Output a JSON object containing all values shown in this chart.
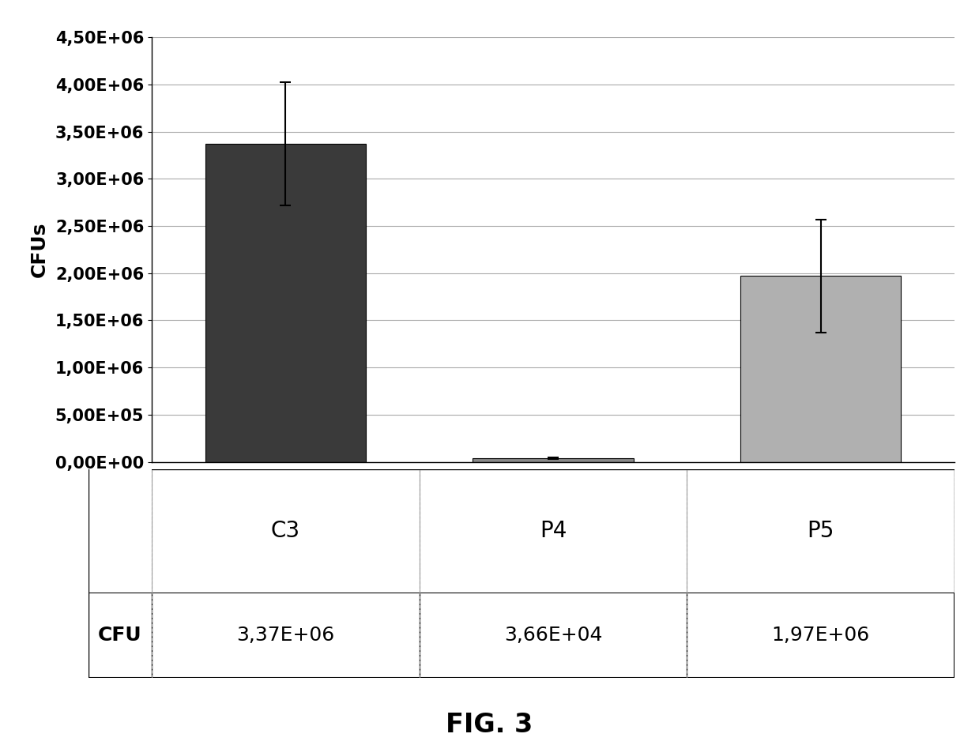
{
  "categories": [
    "C3",
    "P4",
    "P5"
  ],
  "values": [
    3370000,
    36600,
    1970000
  ],
  "errors": [
    650000,
    10000,
    600000
  ],
  "bar_colors": [
    "#3a3a3a",
    "#888888",
    "#b0b0b0"
  ],
  "bar_edge_colors": [
    "#000000",
    "#000000",
    "#000000"
  ],
  "ylabel": "CFUs",
  "ylim": [
    0,
    4500000
  ],
  "yticks": [
    0,
    500000,
    1000000,
    1500000,
    2000000,
    2500000,
    3000000,
    3500000,
    4000000,
    4500000
  ],
  "ytick_labels": [
    "0,00E+00",
    "5,00E+05",
    "1,00E+06",
    "1,50E+06",
    "2,00E+06",
    "2,50E+06",
    "3,00E+06",
    "3,50E+06",
    "4,00E+06",
    "4,50E+06"
  ],
  "table_header": [
    "CFU",
    "3,37E+06",
    "3,66E+04",
    "1,97E+06"
  ],
  "figure_title": "FIG. 3",
  "background_color": "#ffffff",
  "title_fontsize": 24,
  "ylabel_fontsize": 18,
  "tick_fontsize": 15,
  "cat_label_fontsize": 20,
  "table_fontsize": 18
}
